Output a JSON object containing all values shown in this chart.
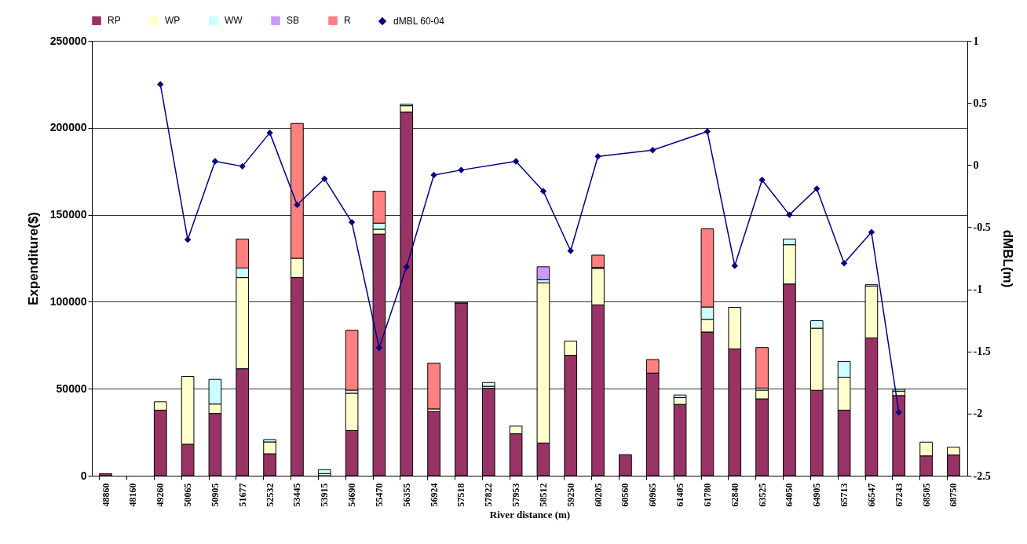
{
  "chart_data": {
    "type": "bar",
    "stacked": true,
    "xlabel": "River distance (m)",
    "ylabel": "Expenditure($)",
    "y2label": "dMBL(m)",
    "categories": [
      "48860",
      "48160",
      "49260",
      "50065",
      "50905",
      "51677",
      "52532",
      "53445",
      "53915",
      "54690",
      "55470",
      "56355",
      "56924",
      "57518",
      "57822",
      "57953",
      "58512",
      "59250",
      "60205",
      "60560",
      "60965",
      "61405",
      "61780",
      "62840",
      "63525",
      "64050",
      "64905",
      "65713",
      "66547",
      "67243",
      "68505",
      "68750"
    ],
    "series": [
      {
        "name": "RP",
        "color": "#993366",
        "values": [
          1200,
          null,
          37700,
          18100,
          35800,
          61500,
          12600,
          113900,
          null,
          26000,
          138900,
          209000,
          36900,
          99300,
          50300,
          24100,
          18800,
          69200,
          98200,
          12100,
          59000,
          41000,
          82600,
          72900,
          44200,
          110200,
          49100,
          37700,
          79200,
          46100,
          11400,
          11900
        ]
      },
      {
        "name": "WP",
        "color": "#ffffcc",
        "values": [
          null,
          null,
          4800,
          39000,
          5400,
          52400,
          6800,
          11100,
          1200,
          21400,
          2800,
          3700,
          1500,
          500,
          1100,
          4400,
          92100,
          8200,
          21000,
          null,
          null,
          3900,
          7300,
          23900,
          5000,
          22600,
          35700,
          18900,
          29800,
          2500,
          7900,
          4500
        ]
      },
      {
        "name": "WW",
        "color": "#ccffff",
        "values": [
          null,
          null,
          null,
          null,
          14200,
          5500,
          1400,
          null,
          2300,
          1800,
          3500,
          800,
          null,
          null,
          2200,
          null,
          1800,
          null,
          500,
          null,
          null,
          1500,
          7100,
          null,
          1200,
          3200,
          4300,
          9100,
          800,
          1100,
          null,
          null
        ]
      },
      {
        "name": "SB",
        "color": "#cc99ff",
        "values": [
          null,
          null,
          null,
          null,
          null,
          null,
          null,
          null,
          null,
          null,
          null,
          null,
          null,
          null,
          null,
          null,
          7400,
          null,
          null,
          null,
          null,
          null,
          null,
          null,
          null,
          null,
          null,
          null,
          null,
          null,
          null,
          null
        ]
      },
      {
        "name": "R",
        "color": "#ff8080",
        "values": [
          null,
          null,
          null,
          null,
          null,
          16600,
          null,
          77500,
          null,
          34400,
          18300,
          null,
          26300,
          null,
          null,
          null,
          null,
          null,
          7100,
          null,
          7800,
          null,
          44900,
          null,
          23300,
          null,
          null,
          null,
          null,
          null,
          null,
          null
        ]
      },
      {
        "name": "dMBL 60-04",
        "type": "line",
        "axis": "y2",
        "color": "#000080",
        "values": [
          null,
          null,
          0.65,
          -0.6,
          0.03,
          -0.01,
          0.26,
          -0.32,
          -0.11,
          -0.46,
          -1.47,
          -0.82,
          -0.08,
          -0.04,
          null,
          0.03,
          -0.21,
          -0.69,
          0.07,
          null,
          0.12,
          null,
          0.27,
          -0.81,
          -0.12,
          -0.4,
          -0.19,
          -0.79,
          -0.54,
          -1.99,
          null,
          null
        ]
      }
    ],
    "ylim": [
      0,
      250000
    ],
    "yticks": [
      0,
      50000,
      100000,
      150000,
      200000,
      250000
    ],
    "y2lim": [
      -2.5,
      1
    ],
    "y2ticks": [
      -2.5,
      -2,
      -1.5,
      -1,
      -0.5,
      0,
      0.5,
      1
    ],
    "grid": "y",
    "legend": "top",
    "marker": "diamond"
  }
}
